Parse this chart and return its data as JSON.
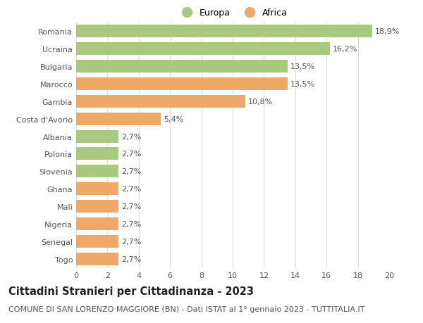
{
  "categories": [
    "Romania",
    "Ucraina",
    "Bulgaria",
    "Marocco",
    "Gambia",
    "Costa d'Avorio",
    "Albania",
    "Polonia",
    "Slovenia",
    "Ghana",
    "Mali",
    "Nigeria",
    "Senegal",
    "Togo"
  ],
  "values": [
    18.9,
    16.2,
    13.5,
    13.5,
    10.8,
    5.4,
    2.7,
    2.7,
    2.7,
    2.7,
    2.7,
    2.7,
    2.7,
    2.7
  ],
  "labels": [
    "18,9%",
    "16,2%",
    "13,5%",
    "13,5%",
    "10,8%",
    "5,4%",
    "2,7%",
    "2,7%",
    "2,7%",
    "2,7%",
    "2,7%",
    "2,7%",
    "2,7%",
    "2,7%"
  ],
  "colors": [
    "#a8c97f",
    "#a8c97f",
    "#a8c97f",
    "#f0a868",
    "#f0a868",
    "#f0a868",
    "#a8c97f",
    "#a8c97f",
    "#a8c97f",
    "#f0a868",
    "#f0a868",
    "#f0a868",
    "#f0a868",
    "#f0a868"
  ],
  "legend_labels": [
    "Europa",
    "Africa"
  ],
  "legend_colors": [
    "#a8c97f",
    "#f0a868"
  ],
  "title": "Cittadini Stranieri per Cittadinanza - 2023",
  "subtitle": "COMUNE DI SAN LORENZO MAGGIORE (BN) - Dati ISTAT al 1° gennaio 2023 - TUTTITALIA.IT",
  "xlim": [
    0,
    20
  ],
  "xticks": [
    0,
    2,
    4,
    6,
    8,
    10,
    12,
    14,
    16,
    18,
    20
  ],
  "background_color": "#ffffff",
  "grid_color": "#dddddd",
  "title_fontsize": 10.5,
  "subtitle_fontsize": 8,
  "label_fontsize": 8,
  "tick_fontsize": 8,
  "bar_height": 0.72
}
